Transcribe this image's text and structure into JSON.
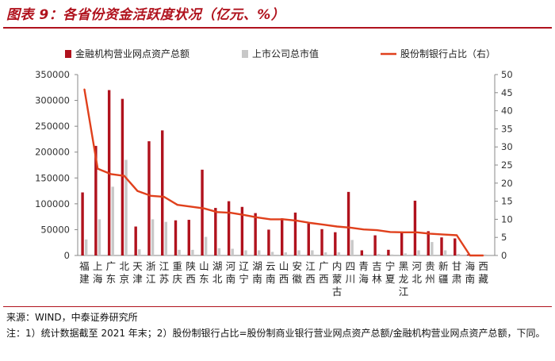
{
  "header": {
    "title": "图表 9：各省份资金活跃度状况（亿元、%）"
  },
  "colors": {
    "accent": "#b0121d",
    "bar_primary": "#b0121d",
    "bar_secondary": "#c8c8c8",
    "line": "#e0401c"
  },
  "chart_data": {
    "type": "bar",
    "categories": [
      "福建",
      "上海",
      "广东",
      "北京",
      "天津",
      "浙江",
      "江苏",
      "重庆",
      "陕西",
      "山东",
      "湖北",
      "河南",
      "辽宁",
      "湖南",
      "云南",
      "山西",
      "安徽",
      "江西",
      "广西",
      "内蒙古",
      "四川",
      "青海",
      "吉林",
      "宁夏",
      "黑龙江",
      "河北",
      "贵州",
      "新疆",
      "甘肃",
      "海南",
      "西藏"
    ],
    "series": [
      {
        "name": "金融机构营业网点资产总额",
        "kind": "bar",
        "axis": "left",
        "values": [
          122000,
          212000,
          320000,
          303000,
          56000,
          221000,
          242000,
          68000,
          69000,
          166000,
          92000,
          105000,
          94000,
          82000,
          50000,
          72000,
          83000,
          62000,
          51000,
          45000,
          123000,
          10000,
          39000,
          11000,
          46000,
          106000,
          47000,
          35000,
          33000,
          2000,
          1000
        ]
      },
      {
        "name": "上市公司总市值",
        "kind": "bar",
        "axis": "left",
        "values": [
          31000,
          70000,
          133000,
          185000,
          12000,
          70000,
          65000,
          11000,
          11000,
          36000,
          14000,
          13000,
          10000,
          10000,
          7000,
          6000,
          10000,
          10000,
          6000,
          6000,
          30000,
          2000,
          3000,
          2000,
          4000,
          10000,
          26000,
          10000,
          3000,
          1000,
          2000
        ]
      },
      {
        "name": "股份制银行占比（右）",
        "kind": "line",
        "axis": "right",
        "values": [
          46,
          24,
          22.5,
          22,
          17.8,
          16.5,
          16.2,
          14,
          13.5,
          13,
          12,
          11.8,
          11.2,
          10.5,
          10,
          10,
          9.6,
          9,
          8.5,
          8,
          7.7,
          7.2,
          7,
          6.5,
          6.4,
          6.4,
          6,
          5.8,
          5.6,
          0,
          0
        ]
      }
    ],
    "ylim_left": [
      0,
      350000
    ],
    "yticks_left": [
      "0",
      "50000",
      "100000",
      "150000",
      "200000",
      "250000",
      "300000",
      "350000"
    ],
    "ylim_right": [
      0,
      50
    ],
    "yticks_right": [
      "0",
      "5",
      "10",
      "15",
      "20",
      "25",
      "30",
      "35",
      "40",
      "45",
      "50"
    ],
    "legend_position": "top",
    "grid": false
  },
  "footer": {
    "source": "来源：WIND，中泰证券研究所",
    "note": "注：1）统计数据截至 2021 年末；2）股份制银行占比=股份制商业银行营业网点资产总额/金融机构营业网点资产总额，下同。"
  }
}
